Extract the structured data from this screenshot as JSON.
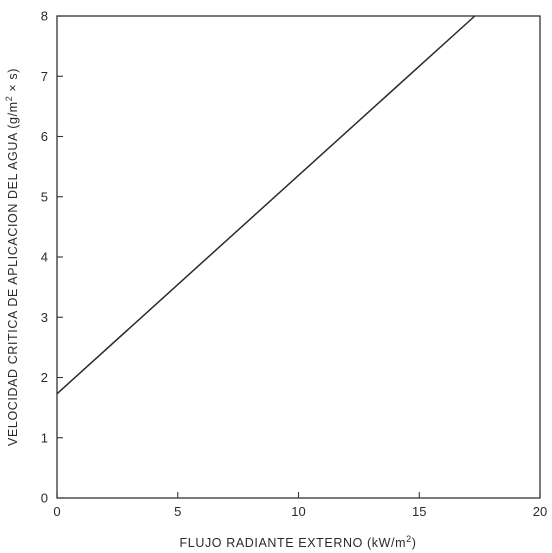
{
  "chart_data": {
    "type": "line",
    "xlabel": "FLUJO RADIANTE EXTERNO (kW/m",
    "xlabel_sup": "2",
    "xlabel_end": ")",
    "ylabel": "VELOCIDAD CRITICA DE APLICACION DEL AGUA (g/m",
    "ylabel_sup": "2",
    "ylabel_end": " × s)",
    "xlim": [
      0,
      20
    ],
    "ylim": [
      0,
      8
    ],
    "x_ticks": [
      0,
      5,
      10,
      15,
      20
    ],
    "y_ticks": [
      0,
      1,
      2,
      3,
      4,
      5,
      6,
      7,
      8
    ],
    "grid": false,
    "series": [
      {
        "x": [
          0,
          17.3
        ],
        "y": [
          1.73,
          8.0
        ],
        "color": "#2a2a2a"
      }
    ]
  }
}
